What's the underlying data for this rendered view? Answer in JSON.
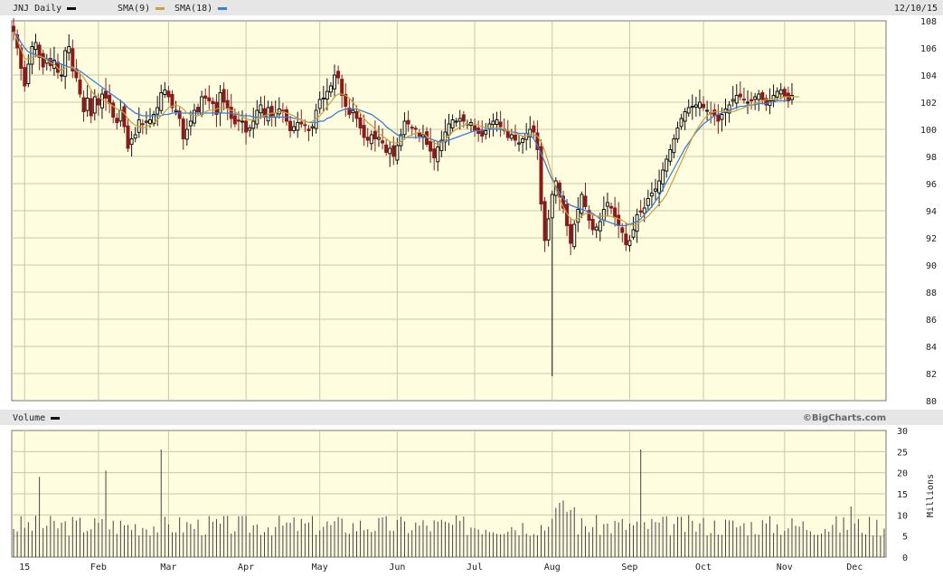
{
  "header": {
    "ticker_label": "JNJ Daily",
    "sma9_label": "SMA(9)",
    "sma18_label": "SMA(18)",
    "date": "12/10/15"
  },
  "volume_header": {
    "label": "Volume",
    "credit": "©BigCharts.com"
  },
  "colors": {
    "background": "#fffde0",
    "header_bar": "#e6e6e6",
    "grid": "#c9c9a8",
    "candle_up": "#111111",
    "candle_down": "#8b1a1a",
    "sma9": "#c8a040",
    "sma18": "#3a7fd5",
    "volume_bar": "#444444"
  },
  "chart_data": [
    {
      "type": "candlestick",
      "name": "price",
      "ylim": [
        80,
        108
      ],
      "yticks": [
        80,
        82,
        84,
        86,
        88,
        90,
        92,
        94,
        96,
        98,
        100,
        102,
        104,
        106,
        108
      ],
      "x_tick_labels": [
        "15",
        "Feb",
        "Mar",
        "Apr",
        "May",
        "Jun",
        "Jul",
        "Aug",
        "Sep",
        "Oct",
        "Nov",
        "Dec"
      ],
      "x_tick_index": [
        3,
        23,
        42,
        63,
        83,
        104,
        125,
        146,
        167,
        187,
        209,
        228
      ],
      "trading_days": 237,
      "closes": [
        107.2,
        106.0,
        104.5,
        103.2,
        104.8,
        106.1,
        106.4,
        105.3,
        104.6,
        105.2,
        104.7,
        105.1,
        104.2,
        104.0,
        105.8,
        106.1,
        104.3,
        103.8,
        102.6,
        101.3,
        102.3,
        101.0,
        102.4,
        101.8,
        102.6,
        102.3,
        101.9,
        100.9,
        100.5,
        101.4,
        100.2,
        98.6,
        99.3,
        99.6,
        100.7,
        100.4,
        100.6,
        100.7,
        101.1,
        101.6,
        102.7,
        102.9,
        102.4,
        101.6,
        101.4,
        100.8,
        99.3,
        100.0,
        100.6,
        101.4,
        101.3,
        102.4,
        102.3,
        102.1,
        101.9,
        101.1,
        102.7,
        102.0,
        101.6,
        100.8,
        100.4,
        100.6,
        100.6,
        99.8,
        100.1,
        100.6,
        101.4,
        101.8,
        100.9,
        101.6,
        101.0,
        101.2,
        101.5,
        101.4,
        100.6,
        99.9,
        100.2,
        100.5,
        100.4,
        100.3,
        99.9,
        100.2,
        101.4,
        102.2,
        102.3,
        102.8,
        103.2,
        104.0,
        103.8,
        102.5,
        101.7,
        101.1,
        101.4,
        100.8,
        100.1,
        99.4,
        99.2,
        99.6,
        99.3,
        99.4,
        99.0,
        98.3,
        98.6,
        98.0,
        98.8,
        99.6,
        100.6,
        100.4,
        100.1,
        100.0,
        99.5,
        99.6,
        98.9,
        98.4,
        97.9,
        98.7,
        99.2,
        99.8,
        100.4,
        100.7,
        100.6,
        100.8,
        100.6,
        100.4,
        100.5,
        99.9,
        99.7,
        99.5,
        99.9,
        100.4,
        100.6,
        100.7,
        100.2,
        99.9,
        99.4,
        99.6,
        99.2,
        99.0,
        99.3,
        99.7,
        100.0,
        99.8,
        98.5,
        94.5,
        91.8,
        93.4,
        95.2,
        96.2,
        95.0,
        94.2,
        92.9,
        91.6,
        93.0,
        94.1,
        95.2,
        94.3,
        93.3,
        92.6,
        92.8,
        93.2,
        94.1,
        94.6,
        94.2,
        93.5,
        92.9,
        92.4,
        91.5,
        91.8,
        92.6,
        93.7,
        93.9,
        94.2,
        94.9,
        95.3,
        95.6,
        96.2,
        97.0,
        97.8,
        98.5,
        99.3,
        100.1,
        100.8,
        101.3,
        101.6,
        101.7,
        101.8,
        102.0,
        101.6,
        101.4,
        101.2,
        101.0,
        100.6,
        101.1,
        101.5,
        101.8,
        102.2,
        102.5,
        102.4,
        102.2,
        102.0,
        102.1,
        102.4,
        102.6,
        102.2,
        101.8,
        102.1,
        102.5,
        102.8,
        102.9,
        102.4,
        102.1,
        102.5
      ],
      "sma9": [
        107.2,
        106.6,
        105.9,
        105.2,
        105.2,
        105.3,
        105.4,
        105.4,
        105.3,
        105.1,
        104.9,
        104.8,
        104.5,
        104.3,
        104.5,
        104.6,
        104.6,
        104.3,
        104.1,
        103.8,
        103.4,
        102.9,
        102.5,
        102.4,
        102.2,
        102.1,
        101.9,
        101.7,
        101.5,
        101.4,
        101.2,
        100.8,
        100.5,
        100.3,
        100.2,
        100.1,
        100.2,
        100.3,
        100.5,
        100.7,
        101.0,
        101.3,
        101.6,
        101.7,
        101.8,
        101.7,
        101.5,
        101.2,
        101.1,
        101.0,
        101.0,
        101.1,
        101.3,
        101.4,
        101.4,
        101.5,
        101.6,
        101.6,
        101.5,
        101.4,
        101.3,
        101.1,
        100.9,
        100.8,
        100.7,
        100.7,
        100.8,
        100.9,
        101.0,
        101.1,
        101.2,
        101.2,
        101.3,
        101.3,
        101.2,
        101.1,
        101.0,
        100.8,
        100.7,
        100.6,
        100.5,
        100.6,
        100.8,
        101.0,
        101.3,
        101.7,
        102.0,
        102.4,
        102.6,
        102.6,
        102.5,
        102.3,
        102.0,
        101.6,
        101.2,
        100.8,
        100.5,
        100.3,
        100.0,
        99.7,
        99.5,
        99.3,
        99.1,
        99.0,
        99.0,
        99.1,
        99.3,
        99.5,
        99.6,
        99.7,
        99.8,
        99.7,
        99.5,
        99.2,
        99.0,
        98.9,
        99.0,
        99.2,
        99.5,
        99.8,
        100.0,
        100.2,
        100.3,
        100.4,
        100.4,
        100.4,
        100.3,
        100.2,
        100.1,
        100.1,
        100.1,
        100.1,
        100.1,
        100.0,
        99.9,
        99.8,
        99.7,
        99.6,
        99.5,
        99.5,
        99.6,
        99.6,
        99.5,
        99.1,
        98.4,
        97.5,
        96.6,
        95.6,
        94.9,
        94.3,
        93.8,
        93.4,
        93.3,
        93.4,
        93.6,
        93.8,
        93.8,
        93.7,
        93.6,
        93.6,
        93.6,
        93.6,
        93.6,
        93.5,
        93.4,
        93.3,
        93.1,
        93.0,
        92.9,
        93.0,
        93.2,
        93.4,
        93.6,
        93.9,
        94.2,
        94.5,
        94.8,
        95.2,
        95.8,
        96.4,
        97.0,
        97.6,
        98.2,
        98.8,
        99.4,
        99.9,
        100.3,
        100.7,
        101.0,
        101.2,
        101.3,
        101.3,
        101.3,
        101.3,
        101.3,
        101.3,
        101.4,
        101.5,
        101.6,
        101.7,
        101.8,
        101.9,
        102.0,
        102.1,
        102.2,
        102.2,
        102.2,
        102.2,
        102.3,
        102.4,
        102.4,
        102.4,
        102.4,
        102.4
      ],
      "sma18": [
        107.2,
        106.9,
        106.4,
        106.0,
        105.7,
        105.6,
        105.5,
        105.4,
        105.3,
        105.2,
        105.1,
        105.0,
        104.9,
        104.8,
        104.7,
        104.6,
        104.5,
        104.4,
        104.3,
        104.1,
        103.9,
        103.7,
        103.5,
        103.3,
        103.1,
        102.9,
        102.7,
        102.5,
        102.3,
        102.1,
        101.9,
        101.6,
        101.4,
        101.2,
        101.1,
        101.0,
        101.0,
        101.0,
        101.0,
        101.0,
        101.0,
        101.1,
        101.1,
        101.2,
        101.2,
        101.2,
        101.2,
        101.2,
        101.2,
        101.2,
        101.2,
        101.2,
        101.2,
        101.2,
        101.2,
        101.2,
        101.2,
        101.2,
        101.2,
        101.2,
        101.1,
        101.1,
        101.0,
        101.0,
        101.0,
        100.9,
        100.9,
        100.9,
        100.9,
        100.9,
        100.9,
        100.9,
        100.9,
        100.9,
        100.9,
        100.9,
        100.8,
        100.8,
        100.7,
        100.6,
        100.5,
        100.5,
        100.5,
        100.6,
        100.6,
        100.8,
        100.9,
        101.1,
        101.3,
        101.4,
        101.5,
        101.5,
        101.5,
        101.5,
        101.4,
        101.3,
        101.2,
        101.1,
        100.9,
        100.7,
        100.5,
        100.2,
        100.0,
        99.8,
        99.6,
        99.5,
        99.4,
        99.4,
        99.4,
        99.4,
        99.4,
        99.4,
        99.4,
        99.3,
        99.2,
        99.1,
        99.1,
        99.1,
        99.2,
        99.3,
        99.4,
        99.5,
        99.6,
        99.7,
        99.8,
        99.9,
        99.9,
        99.9,
        100.0,
        100.0,
        100.0,
        100.0,
        100.0,
        99.9,
        99.9,
        99.8,
        99.8,
        99.7,
        99.7,
        99.7,
        99.6,
        99.3,
        98.8,
        98.2,
        97.6,
        96.9,
        96.3,
        95.8,
        95.3,
        94.9,
        94.6,
        94.4,
        94.3,
        94.2,
        94.1,
        94.0,
        93.9,
        93.8,
        93.6,
        93.4,
        93.3,
        93.2,
        93.1,
        93.0,
        92.9,
        92.9,
        92.9,
        93.0,
        93.1,
        93.2,
        93.4,
        93.7,
        94.0,
        94.3,
        94.7,
        95.1,
        95.6,
        96.1,
        96.6,
        97.1,
        97.6,
        98.1,
        98.6,
        99.0,
        99.4,
        99.8,
        100.1,
        100.4,
        100.6,
        100.8,
        101.0,
        101.1,
        101.2,
        101.3,
        101.4,
        101.5,
        101.6,
        101.7,
        101.7,
        101.8,
        101.8,
        101.8,
        101.9,
        101.9,
        101.9,
        102.0,
        102.0,
        102.1,
        102.1,
        102.1,
        102.2
      ]
    },
    {
      "type": "bar",
      "name": "volume",
      "ylabel": "Millions",
      "ylim": [
        0,
        30
      ],
      "yticks": [
        0,
        5,
        10,
        15,
        20,
        25,
        30
      ],
      "spikes": [
        {
          "index": 7,
          "value": 19
        },
        {
          "index": 25,
          "value": 20.5
        },
        {
          "index": 40,
          "value": 25.5
        },
        {
          "index": 170,
          "value": 25.5
        },
        {
          "index": 227,
          "value": 12
        }
      ],
      "typical_value": 8
    }
  ]
}
